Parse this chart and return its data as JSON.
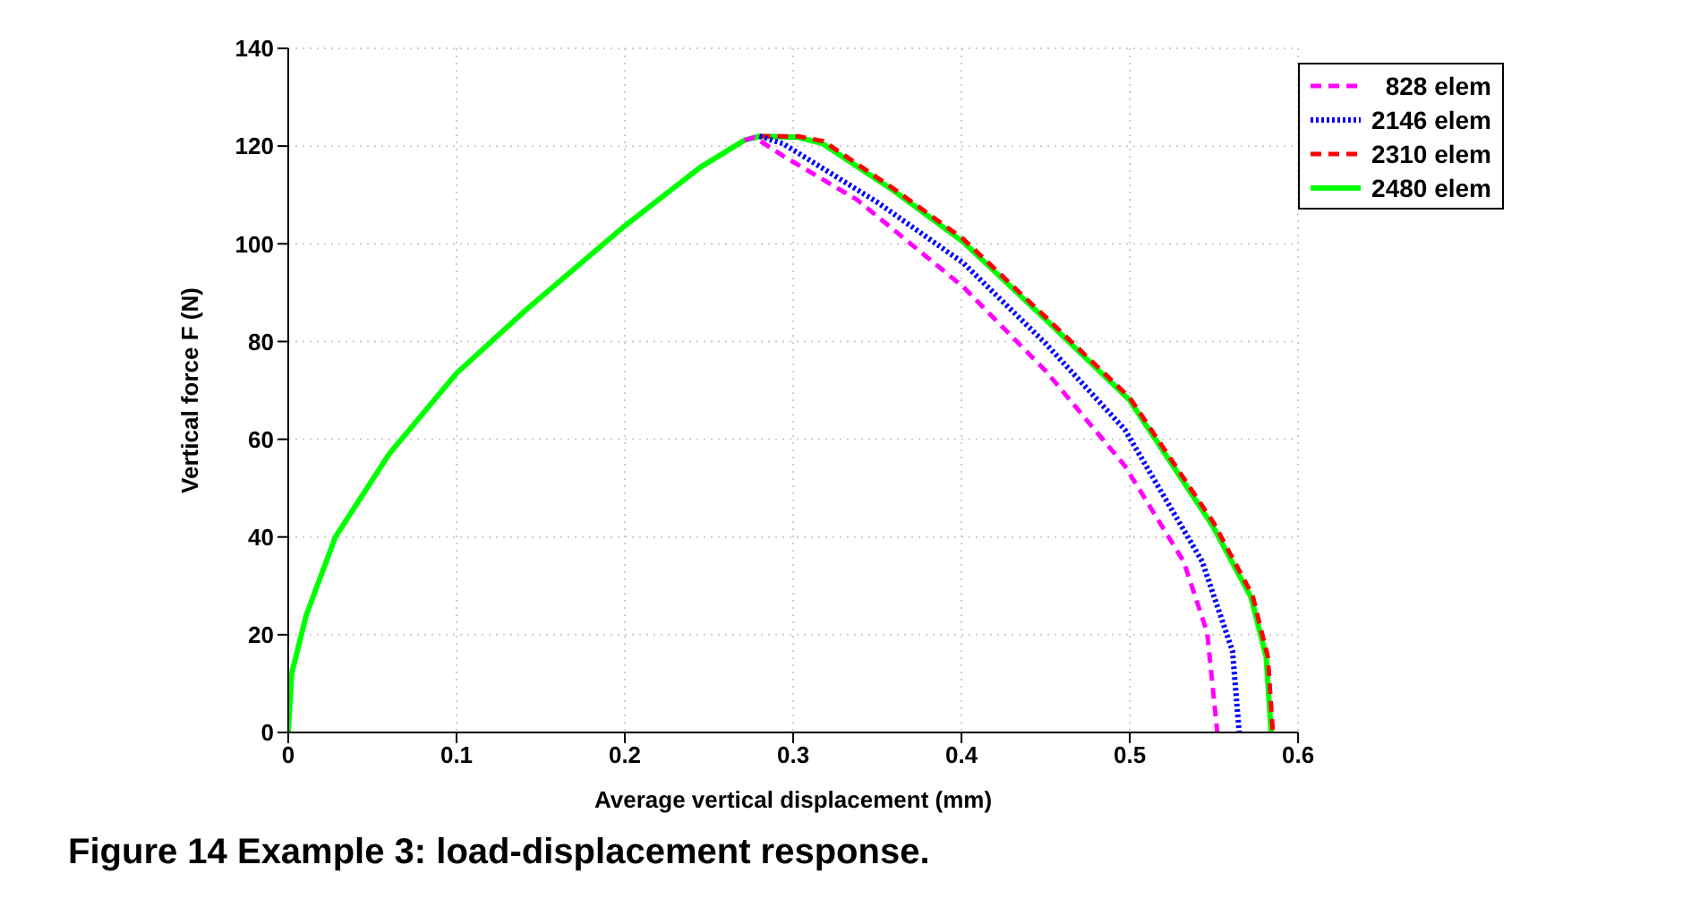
{
  "chart_data": {
    "type": "line",
    "xlabel": "Average vertical displacement (mm)",
    "ylabel": "Vertical force  F (N)",
    "annotations": [
      "Figure 14 Example 3: load-displacement response."
    ],
    "xlim": [
      0,
      0.6
    ],
    "xticks": [
      0,
      0.1,
      0.2,
      0.3,
      0.4,
      0.5,
      0.6
    ],
    "ylim": [
      0,
      140
    ],
    "yticks": [
      0,
      20,
      40,
      60,
      80,
      100,
      120,
      140
    ],
    "grid": true,
    "legend": "top right",
    "marker": "none",
    "series": [
      {
        "name": "828 elem",
        "color": "#ff00ff",
        "line_style": "dashed",
        "x": [
          0.271,
          0.277,
          0.294,
          0.338,
          0.401,
          0.45,
          0.497,
          0.532,
          0.546,
          0.552
        ],
        "values": [
          121.2,
          121.8,
          118,
          109,
          91.2,
          74,
          54.6,
          35,
          20.4,
          0
        ]
      },
      {
        "name": "2146 elem",
        "color": "#0000ff",
        "line_style": "dotted",
        "x": [
          0.28,
          0.294,
          0.35,
          0.401,
          0.45,
          0.497,
          0.543,
          0.561,
          0.565
        ],
        "values": [
          122,
          120.5,
          108.5,
          96.1,
          79.6,
          62,
          35,
          16.7,
          0
        ]
      },
      {
        "name": "2310 elem",
        "color": "#ff0000",
        "line_style": "dashed",
        "x": [
          0.28,
          0.303,
          0.318,
          0.36,
          0.401,
          0.45,
          0.5,
          0.55,
          0.573,
          0.582,
          0.585
        ],
        "values": [
          122,
          122,
          121,
          111.2,
          101,
          85,
          68.5,
          42.8,
          28,
          15.5,
          0
        ]
      },
      {
        "name": "2480 elem",
        "color": "#00ff00",
        "line_style": "solid",
        "x": [
          0,
          0.002,
          0.0107,
          0.028,
          0.06,
          0.1,
          0.141,
          0.199,
          0.245,
          0.271,
          0.28,
          0.303,
          0.3175,
          0.36,
          0.401,
          0.45,
          0.4999,
          0.549,
          0.572,
          0.581,
          0.584
        ],
        "values": [
          0,
          12,
          24,
          40,
          57,
          73.5,
          86.4,
          103.4,
          115.7,
          121.2,
          122,
          121.8,
          120.5,
          110.8,
          100.4,
          84.5,
          68,
          42.4,
          27.7,
          15.5,
          0
        ]
      }
    ]
  }
}
